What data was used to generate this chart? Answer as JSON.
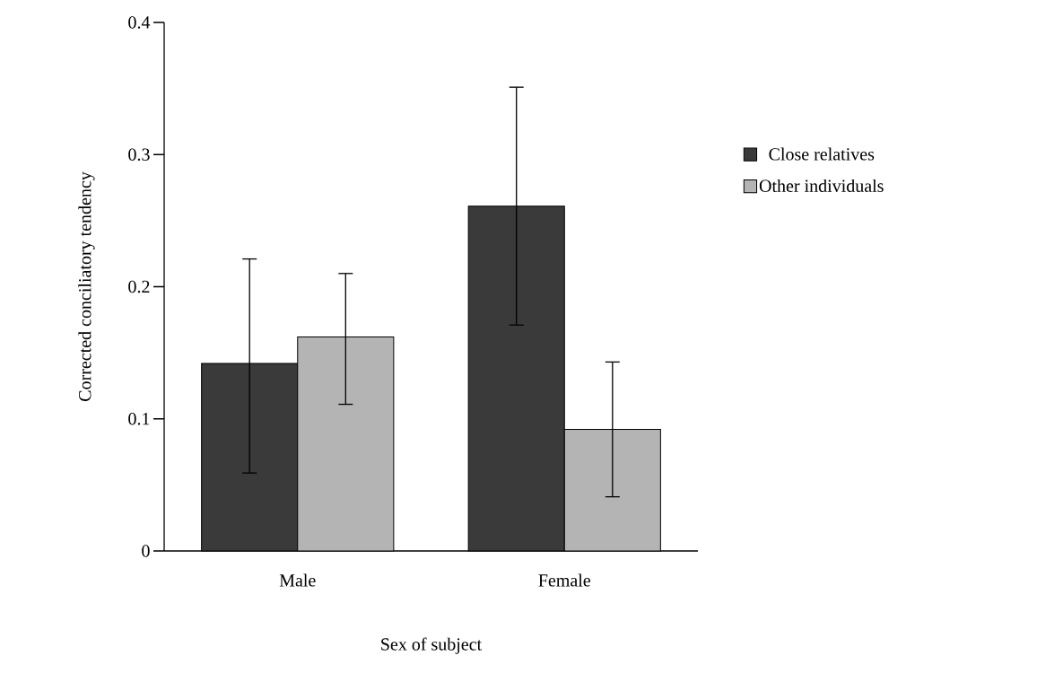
{
  "chart_data": {
    "type": "bar",
    "xlabel": "Sex of subject",
    "ylabel": "Corrected conciliatory tendency",
    "categories": [
      "Male",
      "Female"
    ],
    "series": [
      {
        "name": "Close relatives",
        "color": "#3a3a3a",
        "values": [
          0.142,
          0.261
        ],
        "errors": [
          [
            0.059,
            0.221
          ],
          [
            0.171,
            0.351
          ]
        ]
      },
      {
        "name": "Other individuals",
        "color": "#b4b4b4",
        "values": [
          0.162,
          0.092
        ],
        "errors": [
          [
            0.111,
            0.21
          ],
          [
            0.041,
            0.143
          ]
        ]
      }
    ],
    "ylim": [
      0,
      0.4
    ],
    "yticks": [
      0,
      0.1,
      0.2,
      0.3,
      0.4
    ],
    "grid": false,
    "legend": "right"
  }
}
